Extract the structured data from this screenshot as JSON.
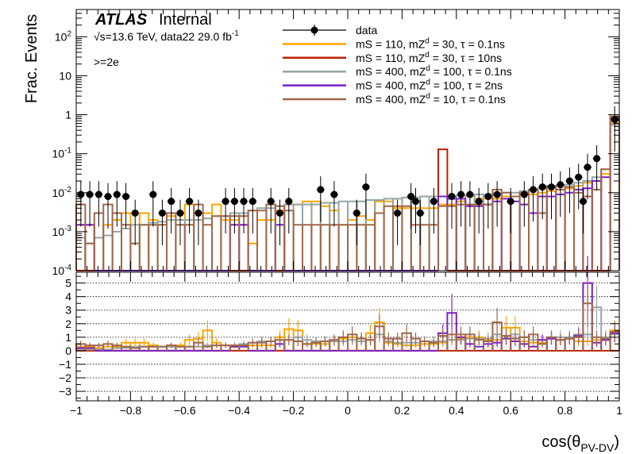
{
  "chart_data": [
    {
      "type": "histogram",
      "panel": "main",
      "ylabel": "Frac. Events",
      "yscale": "log",
      "ylim": [
        0.0001,
        500
      ],
      "xlim": [
        -1,
        1
      ],
      "ytick_labels": [
        "10^{-4}",
        "10^{-3}",
        "10^{-2}",
        "10^{-1}",
        "1",
        "10",
        "10^{2}"
      ],
      "annotations": {
        "experiment": "ATLAS",
        "status": "Internal",
        "energy_prefix": "√s=13.6 TeV, data22 29.0 fb",
        "energy_sup": "-1",
        "selection": ">=2e"
      },
      "legend": {
        "placement": "top-right",
        "entries": [
          {
            "text": "data",
            "color": "#000000",
            "style": "marker"
          },
          {
            "text": "mS = 110, mZ_d = 30, τ = 0.1ns",
            "color": "#ffa500",
            "style": "line"
          },
          {
            "text": "mS = 110, mZ_d = 30, τ = 10ns",
            "color": "#bb2200",
            "style": "line"
          },
          {
            "text": "mS = 400, mZ_d = 100, τ = 0.1ns",
            "color": "#95a5a6",
            "style": "line"
          },
          {
            "text": "mS = 400, mZ_d = 100, τ = 2ns",
            "color": "#7b1fc8",
            "style": "line"
          },
          {
            "text": "mS = 400, mZ_d = 10, τ = 0.1ns",
            "color": "#a0674b",
            "style": "line"
          }
        ]
      },
      "bins": 60,
      "series": [
        {
          "name": "data",
          "color": "#000000",
          "style": "points",
          "points": [
            {
              "x": -0.983,
              "y": 0.009
            },
            {
              "x": -0.95,
              "y": 0.009
            },
            {
              "x": -0.917,
              "y": 0.009
            },
            {
              "x": -0.883,
              "y": 0.008
            },
            {
              "x": -0.85,
              "y": 0.009
            },
            {
              "x": -0.817,
              "y": 0.008
            },
            {
              "x": -0.783,
              "y": 0.003
            },
            {
              "x": -0.717,
              "y": 0.009
            },
            {
              "x": -0.683,
              "y": 0.003
            },
            {
              "x": -0.65,
              "y": 0.006
            },
            {
              "x": -0.617,
              "y": 0.003
            },
            {
              "x": -0.583,
              "y": 0.006
            },
            {
              "x": -0.55,
              "y": 0.003
            },
            {
              "x": -0.45,
              "y": 0.006
            },
            {
              "x": -0.417,
              "y": 0.006
            },
            {
              "x": -0.383,
              "y": 0.006
            },
            {
              "x": -0.35,
              "y": 0.006
            },
            {
              "x": -0.283,
              "y": 0.006
            },
            {
              "x": -0.25,
              "y": 0.003
            },
            {
              "x": -0.217,
              "y": 0.006
            },
            {
              "x": -0.1,
              "y": 0.012
            },
            {
              "x": -0.05,
              "y": 0.009
            },
            {
              "x": 0.033,
              "y": 0.003
            },
            {
              "x": 0.067,
              "y": 0.014
            },
            {
              "x": 0.183,
              "y": 0.003
            },
            {
              "x": 0.233,
              "y": 0.008
            },
            {
              "x": 0.25,
              "y": 0.006
            },
            {
              "x": 0.267,
              "y": 0.003
            },
            {
              "x": 0.317,
              "y": 0.006
            },
            {
              "x": 0.383,
              "y": 0.008
            },
            {
              "x": 0.417,
              "y": 0.009
            },
            {
              "x": 0.45,
              "y": 0.009
            },
            {
              "x": 0.483,
              "y": 0.006
            },
            {
              "x": 0.517,
              "y": 0.008
            },
            {
              "x": 0.55,
              "y": 0.009
            },
            {
              "x": 0.6,
              "y": 0.006
            },
            {
              "x": 0.65,
              "y": 0.009
            },
            {
              "x": 0.683,
              "y": 0.012
            },
            {
              "x": 0.717,
              "y": 0.014
            },
            {
              "x": 0.75,
              "y": 0.014
            },
            {
              "x": 0.783,
              "y": 0.016
            },
            {
              "x": 0.817,
              "y": 0.02
            },
            {
              "x": 0.85,
              "y": 0.025
            },
            {
              "x": 0.883,
              "y": 0.045
            },
            {
              "x": 0.867,
              "y": 0.006
            },
            {
              "x": 0.917,
              "y": 0.075
            },
            {
              "x": 0.983,
              "y": 0.75
            }
          ]
        },
        {
          "name": "mS = 110, mZ_d = 30, τ = 0.1ns",
          "color": "#ffa500",
          "style": "step",
          "values": [
            0.0015,
            0.0015,
            0.0007,
            0.0015,
            0.002,
            0.003,
            0.003,
            0.003,
            0.002,
            0.0015,
            0.0025,
            0.002,
            0.005,
            0.003,
            0.003,
            0.005,
            0.002,
            0.002,
            0.0015,
            0.0005,
            0.002,
            0.002,
            0.0035,
            0.005,
            0.005,
            0.006,
            0.006,
            0.0045,
            0.0035,
            0.0015,
            0.002,
            0.0025,
            0.002,
            0.006,
            0.006,
            0.004,
            0.004,
            0.004,
            0.004,
            0.004,
            0.005,
            0.005,
            0.006,
            0.008,
            0.007,
            0.007,
            0.007,
            0.008,
            0.008,
            0.009,
            0.009,
            0.01,
            0.011,
            0.012,
            0.013,
            0.015,
            0.018,
            0.02,
            0.03,
            0.6
          ]
        },
        {
          "name": "mS = 110, mZ_d = 30, τ = 10ns",
          "color": "#bb2200",
          "style": "step",
          "values": [
            0.0001,
            0.0001,
            0.0001,
            0.0001,
            0.0001,
            0.0001,
            0.0001,
            0.0001,
            0.0001,
            0.0001,
            0.0001,
            0.0001,
            0.0001,
            0.0001,
            0.0001,
            0.0001,
            0.0001,
            0.0001,
            0.0001,
            0.0001,
            0.0001,
            0.0001,
            0.0001,
            0.0001,
            0.0001,
            0.0001,
            0.0001,
            0.0001,
            0.0001,
            0.0001,
            0.0001,
            0.0001,
            0.0001,
            0.0001,
            0.0001,
            0.0001,
            0.0001,
            0.0001,
            0.0001,
            0.0001,
            0.13,
            0.0001,
            0.0001,
            0.0001,
            0.0001,
            0.0001,
            0.0001,
            0.0001,
            0.0001,
            0.0001,
            0.0001,
            0.0001,
            0.0001,
            0.0001,
            0.0001,
            0.0001,
            0.0001,
            0.0001,
            0.0001,
            0.9
          ]
        },
        {
          "name": "mS = 400, mZ_d = 100, τ = 0.1ns",
          "color": "#95a5a6",
          "style": "step",
          "values": [
            0.0007,
            0.0005,
            0.0007,
            0.0008,
            0.001,
            0.0012,
            0.0015,
            0.0015,
            0.0017,
            0.0018,
            0.002,
            0.002,
            0.002,
            0.002,
            0.0022,
            0.0025,
            0.0025,
            0.003,
            0.003,
            0.0035,
            0.004,
            0.004,
            0.0045,
            0.005,
            0.005,
            0.005,
            0.005,
            0.0055,
            0.0055,
            0.006,
            0.006,
            0.006,
            0.0065,
            0.0065,
            0.007,
            0.007,
            0.0075,
            0.0075,
            0.008,
            0.008,
            0.008,
            0.008,
            0.0085,
            0.0085,
            0.009,
            0.009,
            0.0095,
            0.01,
            0.01,
            0.011,
            0.012,
            0.013,
            0.014,
            0.015,
            0.016,
            0.018,
            0.02,
            0.025,
            0.04,
            0.55
          ]
        },
        {
          "name": "mS = 400, mZ_d = 100, τ = 2ns",
          "color": "#7b1fc8",
          "style": "step",
          "values": [
            0.0015,
            0.0015,
            0.0001,
            0.0001,
            0.0001,
            0.0001,
            0.0001,
            0.0001,
            0.0001,
            0.0001,
            0.0001,
            0.0001,
            0.0001,
            0.0001,
            0.0001,
            0.0001,
            0.0001,
            0.0015,
            0.0015,
            0.0001,
            0.0001,
            0.0001,
            0.0015,
            0.0001,
            0.0001,
            0.0001,
            0.0001,
            0.0001,
            0.0001,
            0.0001,
            0.0001,
            0.0001,
            0.0001,
            0.0001,
            0.0001,
            0.0001,
            0.0001,
            0.0001,
            0.0001,
            0.0001,
            0.008,
            0.007,
            0.007,
            0.0045,
            0.0045,
            0.005,
            0.006,
            0.007,
            0.006,
            0.005,
            0.003,
            0.008,
            0.008,
            0.009,
            0.01,
            0.012,
            0.013,
            0.02,
            0.025,
            0.8
          ]
        },
        {
          "name": "mS = 400, mZ_d = 10, τ = 0.1ns",
          "color": "#a0674b",
          "style": "step",
          "values": [
            0.005,
            0.0005,
            0.003,
            0.005,
            0.003,
            0.0015,
            0.0005,
            0.0015,
            0.0015,
            0.0015,
            0.003,
            0.0015,
            0.0015,
            0.005,
            0.0015,
            0.0025,
            0.0025,
            0.0025,
            0.0025,
            0.0035,
            0.0035,
            0.005,
            0.0045,
            0.0035,
            0.0015,
            0.0015,
            0.0015,
            0.0015,
            0.0015,
            0.0015,
            0.0015,
            0.0015,
            0.0015,
            0.003,
            0.0045,
            0.0045,
            0.0045,
            0.0015,
            0.0015,
            0.0015,
            0.0045,
            0.0045,
            0.005,
            0.005,
            0.005,
            0.005,
            0.012,
            0.01,
            0.008,
            0.01,
            0.012,
            0.003,
            0.015,
            0.012,
            0.014,
            0.01,
            0.008,
            0.012,
            0.04,
            0.9
          ]
        }
      ]
    },
    {
      "type": "histogram",
      "panel": "ratio",
      "ylim": [
        -3.7,
        5.8
      ],
      "xlim": [
        -1,
        1
      ],
      "yticks": [
        -3,
        -2,
        -1,
        0,
        1,
        2,
        3,
        4,
        5
      ],
      "xticks": [
        -1,
        -0.8,
        -0.6,
        -0.4,
        -0.2,
        0,
        0.2,
        0.4,
        0.6,
        0.8,
        1
      ],
      "xtick_labels": [
        "−1",
        "−0.8",
        "−0.6",
        "−0.4",
        "−0.2",
        "0",
        "0.2",
        "0.4",
        "0.6",
        "0.8",
        "1"
      ],
      "xlabel_main": "cos(θ",
      "xlabel_sub": "PV-DV",
      "xlabel_close": ")",
      "grid": "horizontal-dotted",
      "series": [
        {
          "name": "mS = 110, mZ_d = 30, τ = 0.1ns",
          "color": "#ffa500",
          "values": [
            0.3,
            0.3,
            0.2,
            0.3,
            0.3,
            0.6,
            0.6,
            0.6,
            0.4,
            0.3,
            0.4,
            0.4,
            0.8,
            0.9,
            1.5,
            0.6,
            0.4,
            0.3,
            0.4,
            0.4,
            0.4,
            0.4,
            1.0,
            1.6,
            1.5,
            0.5,
            0.5,
            0.5,
            0.8,
            0.9,
            1.0,
            0.9,
            1.3,
            2.1,
            0.6,
            0.5,
            0.4,
            0.4,
            0.5,
            0.5,
            0.6,
            0.8,
            0.9,
            1.0,
            1.0,
            0.8,
            0.8,
            1.7,
            1.7,
            0.7,
            0.6,
            0.6,
            0.9,
            0.8,
            0.9,
            0.7,
            0.7,
            0.8,
            0.8,
            1.5
          ]
        },
        {
          "name": "mS = 400, mZ_d = 100, τ = 0.1ns",
          "color": "#95a5a6",
          "values": [
            0.1,
            0.1,
            0.1,
            0.1,
            0.2,
            0.2,
            0.3,
            0.3,
            0.3,
            0.3,
            0.3,
            0.3,
            0.3,
            0.3,
            0.4,
            0.4,
            0.4,
            0.4,
            0.5,
            0.6,
            0.7,
            0.7,
            0.8,
            0.8,
            1.0,
            0.8,
            0.7,
            0.7,
            0.7,
            0.7,
            0.8,
            0.7,
            0.8,
            1.2,
            0.7,
            0.6,
            0.6,
            0.6,
            0.7,
            0.7,
            0.7,
            0.8,
            0.8,
            0.9,
            0.9,
            0.9,
            1.2,
            1.1,
            1.2,
            1.0,
            0.8,
            0.8,
            0.9,
            1.0,
            1.0,
            1.2,
            1.2,
            3.2,
            1.0,
            1.2
          ]
        },
        {
          "name": "mS = 400, mZ_d = 100, τ = 2ns",
          "color": "#7b1fc8",
          "values": [
            0.2,
            0.2,
            0,
            0,
            0,
            0,
            0,
            0,
            0,
            0,
            0,
            0,
            0,
            0,
            0,
            0,
            0,
            0.3,
            0.3,
            0,
            0,
            0,
            0.5,
            0,
            0,
            0,
            0,
            0,
            0,
            0,
            0,
            0,
            0,
            0,
            0,
            0,
            0,
            0,
            0,
            0,
            1.3,
            2.8,
            1.0,
            0.5,
            0.3,
            0.5,
            0.6,
            0.9,
            0.7,
            0.5,
            0.3,
            0.8,
            0.9,
            0.8,
            0.9,
            1.1,
            5.0,
            0.6,
            0.8,
            1.3
          ]
        },
        {
          "name": "mS = 400, mZ_d = 10, τ = 0.1ns",
          "color": "#a0674b",
          "values": [
            0.5,
            0.4,
            0.4,
            0.5,
            0.4,
            0.3,
            0.2,
            0.3,
            0.3,
            0.3,
            0.4,
            0.3,
            0.3,
            0.6,
            0.3,
            0.4,
            0.4,
            0.4,
            0.4,
            0.6,
            0.6,
            0.7,
            0.8,
            0.8,
            0.7,
            0.5,
            0.6,
            0.7,
            0.8,
            1.0,
            1.2,
            0.9,
            0.8,
            1.8,
            0.9,
            0.9,
            1.3,
            0.9,
            0.7,
            0.6,
            1.1,
            1.2,
            1.2,
            1.2,
            0.8,
            0.7,
            2.1,
            1.1,
            0.9,
            1.0,
            1.2,
            0.5,
            1.0,
            0.8,
            0.9,
            1.0,
            3.5,
            1.0,
            0.9,
            1.4
          ]
        }
      ]
    }
  ]
}
